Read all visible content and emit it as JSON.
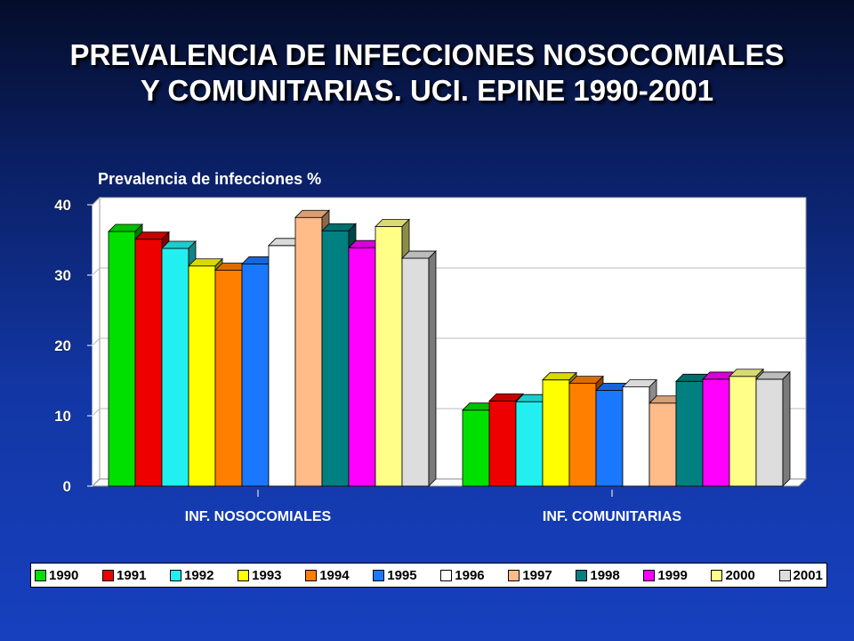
{
  "title": {
    "line1": "PREVALENCIA DE INFECCIONES NOSOCOMIALES",
    "line2": "Y COMUNITARIAS.  UCI. EPINE 1990-2001"
  },
  "chart_data": {
    "type": "bar",
    "style": "3d-clustered",
    "ylabel": "Prevalencia de infecciones %",
    "ylim": [
      0,
      40
    ],
    "yticks": [
      0,
      10,
      20,
      30,
      40
    ],
    "categories": [
      "INF. NOSOCOMIALES",
      "INF. COMUNITARIAS"
    ],
    "grid": true,
    "legend_position": "bottom",
    "series": [
      {
        "name": "1990",
        "color": "#00e000",
        "values": [
          36.2,
          10.8
        ]
      },
      {
        "name": "1991",
        "color": "#ee0000",
        "values": [
          35.1,
          12.1
        ]
      },
      {
        "name": "1992",
        "color": "#22f0f0",
        "values": [
          33.8,
          12.0
        ]
      },
      {
        "name": "1993",
        "color": "#ffff00",
        "values": [
          31.3,
          15.1
        ]
      },
      {
        "name": "1994",
        "color": "#ff8000",
        "values": [
          30.7,
          14.6
        ]
      },
      {
        "name": "1995",
        "color": "#1a78ff",
        "values": [
          31.6,
          13.6
        ]
      },
      {
        "name": "1996",
        "color": "#ffffff",
        "values": [
          34.2,
          14.1
        ]
      },
      {
        "name": "1997",
        "color": "#ffbb88",
        "values": [
          38.2,
          11.8
        ]
      },
      {
        "name": "1998",
        "color": "#008080",
        "values": [
          36.3,
          14.9
        ]
      },
      {
        "name": "1999",
        "color": "#ff00ff",
        "values": [
          33.9,
          15.2
        ]
      },
      {
        "name": "2000",
        "color": "#ffff88",
        "values": [
          36.9,
          15.6
        ]
      },
      {
        "name": "2001",
        "color": "#dddddd",
        "values": [
          32.4,
          15.2
        ]
      }
    ]
  }
}
